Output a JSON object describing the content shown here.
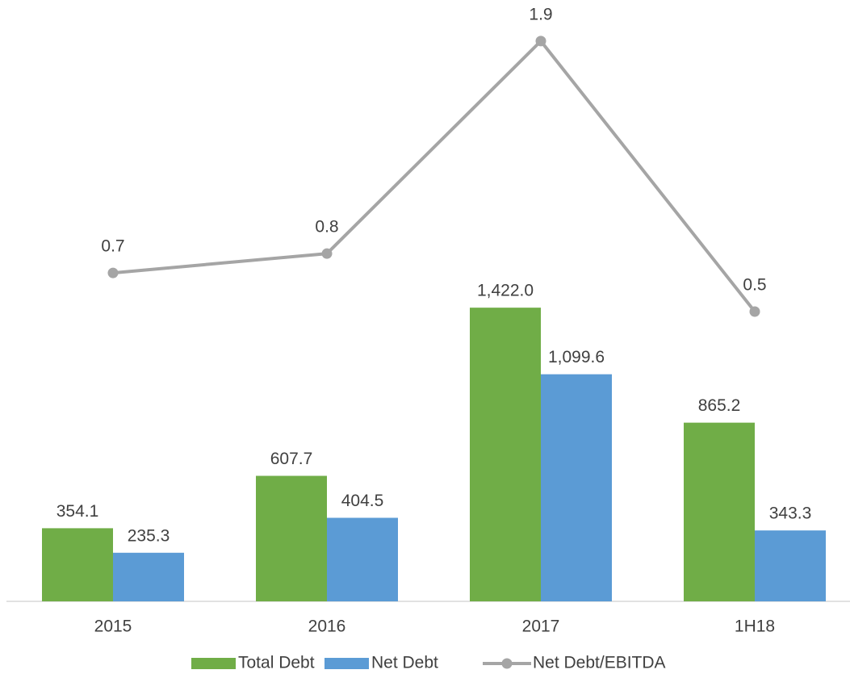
{
  "chart_data": {
    "type": "bar_line",
    "categories": [
      "2015",
      "2016",
      "2017",
      "1H18"
    ],
    "series": [
      {
        "name": "Total Debt",
        "color": "#70ad47",
        "type": "bar",
        "values": [
          354.1,
          607.7,
          1422.0,
          865.2
        ],
        "value_labels": [
          "354.1",
          "607.7",
          "1,422.0",
          "865.2"
        ]
      },
      {
        "name": "Net Debt",
        "color": "#5b9bd5",
        "type": "bar",
        "values": [
          235.3,
          404.5,
          1099.6,
          343.3
        ],
        "value_labels": [
          "235.3",
          "404.5",
          "1,099.6",
          "343.3"
        ]
      },
      {
        "name": "Net Debt/EBITDA",
        "color": "#a5a5a5",
        "type": "line",
        "axis": "y2",
        "values": [
          0.7,
          0.8,
          1.9,
          0.5
        ]
      }
    ],
    "ylim": [
      0,
      2900
    ],
    "y2lim": [
      -1,
      2.1
    ],
    "legend": "bottom"
  }
}
